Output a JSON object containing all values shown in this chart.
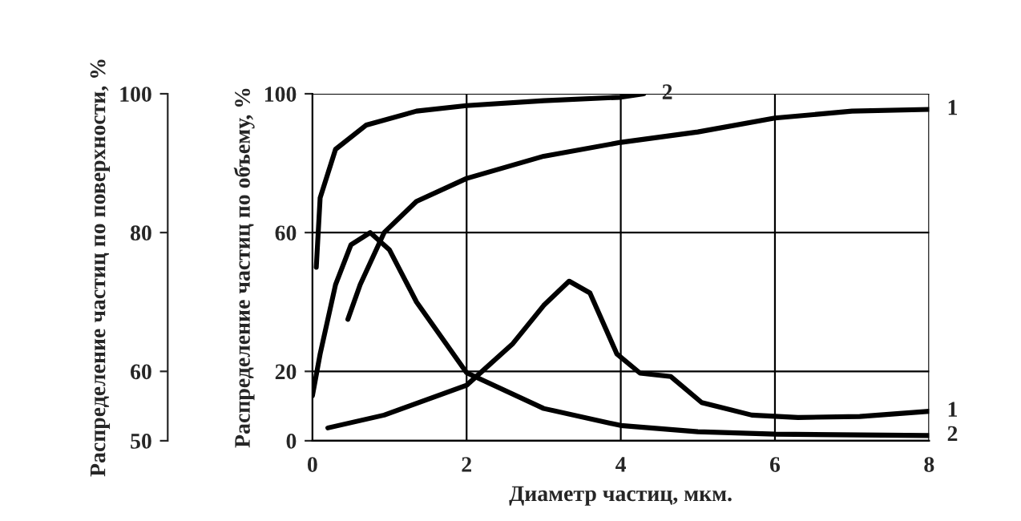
{
  "chart_data": {
    "type": "line",
    "xlabel": "Диаметр частиц, мкм.",
    "ylabel": "Распределение частиц по объему, %",
    "y2label": "Распределение частиц по поверхности, %",
    "xlim": [
      0,
      8
    ],
    "xticks": [
      0,
      2,
      4,
      6,
      8
    ],
    "ylim": [
      0,
      100
    ],
    "yticks": [
      0,
      20,
      60,
      100
    ],
    "y2lim": [
      50,
      100
    ],
    "y2ticks": [
      50,
      60,
      80,
      100
    ],
    "grid": true,
    "marker": "none",
    "line_style": "solid",
    "series": [
      {
        "name": "2",
        "color": "#000000",
        "x": [
          0.05,
          0.1,
          0.3,
          0.7,
          1.35,
          2,
          3,
          4,
          4.3
        ],
        "values": [
          50,
          70,
          84,
          91,
          95,
          96.6,
          98,
          99,
          100
        ]
      },
      {
        "name": "1",
        "color": "#000000",
        "x": [
          0.46,
          0.62,
          0.93,
          1.35,
          2,
          3,
          4,
          5,
          6,
          7,
          8
        ],
        "values": [
          35,
          45,
          60,
          69,
          75.6,
          82,
          86,
          89,
          93,
          95,
          95.5
        ]
      },
      {
        "name": "2",
        "color": "#000000",
        "x": [
          0,
          0.1,
          0.3,
          0.5,
          0.75,
          1.0,
          1.35,
          2,
          3,
          4,
          5,
          6,
          8
        ],
        "values": [
          13,
          25,
          45,
          56.5,
          60,
          55,
          40,
          19.6,
          9.3,
          4.4,
          2.6,
          1.9,
          1.5
        ]
      },
      {
        "name": "1",
        "color": "#000000",
        "x": [
          0.2,
          0.93,
          2,
          2.6,
          3.0,
          3.33,
          3.6,
          3.95,
          4.25,
          4.65,
          5.05,
          5.7,
          6.3,
          7.1,
          8
        ],
        "values": [
          3.7,
          7.4,
          16,
          28,
          39,
          46,
          42.6,
          25,
          19.5,
          18.5,
          11,
          7.4,
          6.7,
          7,
          8.5
        ]
      }
    ]
  }
}
